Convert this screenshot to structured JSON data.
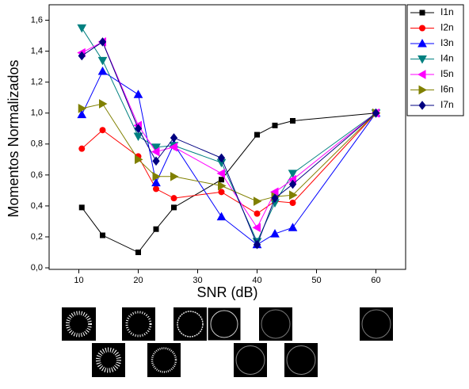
{
  "chart_data": {
    "type": "line",
    "x_label": "SNR (dB)",
    "y_label": "Momentos Normalizados",
    "x": [
      10.5,
      14,
      20,
      23,
      26,
      34,
      40,
      43,
      46,
      60
    ],
    "xlim": [
      5,
      65
    ],
    "xticks": [
      10,
      20,
      30,
      40,
      50,
      60
    ],
    "ylim": [
      -0.01,
      1.7
    ],
    "yticks": [
      {
        "value": 0,
        "label": "0,0"
      },
      {
        "value": 0.2,
        "label": "0,2"
      },
      {
        "value": 0.4,
        "label": "0,4"
      },
      {
        "value": 0.6,
        "label": "0,6"
      },
      {
        "value": 0.8,
        "label": "0,8"
      },
      {
        "value": 1.0,
        "label": "1,0"
      },
      {
        "value": 1.2,
        "label": "1,2"
      },
      {
        "value": 1.4,
        "label": "1,4"
      },
      {
        "value": 1.6,
        "label": "1,6"
      }
    ],
    "legend": "outside-right",
    "series": [
      {
        "name": "I1n",
        "color": "#000000",
        "marker": "square",
        "values": [
          0.39,
          0.21,
          0.1,
          0.25,
          0.39,
          0.57,
          0.86,
          0.92,
          0.95,
          1.0
        ]
      },
      {
        "name": "I2n",
        "color": "#ff0000",
        "marker": "circle",
        "values": [
          0.77,
          0.89,
          0.72,
          0.51,
          0.45,
          0.49,
          0.35,
          0.43,
          0.42,
          1.0
        ]
      },
      {
        "name": "I3n",
        "color": "#0000ff",
        "marker": "triangle-up",
        "values": [
          0.99,
          1.27,
          1.12,
          0.55,
          0.8,
          0.33,
          0.15,
          0.22,
          0.26,
          1.0
        ]
      },
      {
        "name": "I4n",
        "color": "#008080",
        "marker": "triangle-down",
        "values": [
          1.55,
          1.34,
          0.85,
          0.78,
          0.79,
          0.68,
          0.17,
          0.42,
          0.61,
          1.0
        ]
      },
      {
        "name": "I5n",
        "color": "#ff00ff",
        "marker": "triangle-left",
        "values": [
          1.39,
          1.46,
          0.92,
          0.75,
          0.78,
          0.61,
          0.26,
          0.49,
          0.57,
          1.0
        ]
      },
      {
        "name": "I6n",
        "color": "#808000",
        "marker": "triangle-right",
        "values": [
          1.03,
          1.06,
          0.7,
          0.59,
          0.59,
          0.53,
          0.43,
          0.46,
          0.47,
          1.0
        ]
      },
      {
        "name": "I7n",
        "color": "#000080",
        "marker": "diamond",
        "values": [
          1.37,
          1.46,
          0.9,
          0.69,
          0.84,
          0.71,
          0.15,
          0.45,
          0.54,
          1.0
        ]
      }
    ]
  }
}
